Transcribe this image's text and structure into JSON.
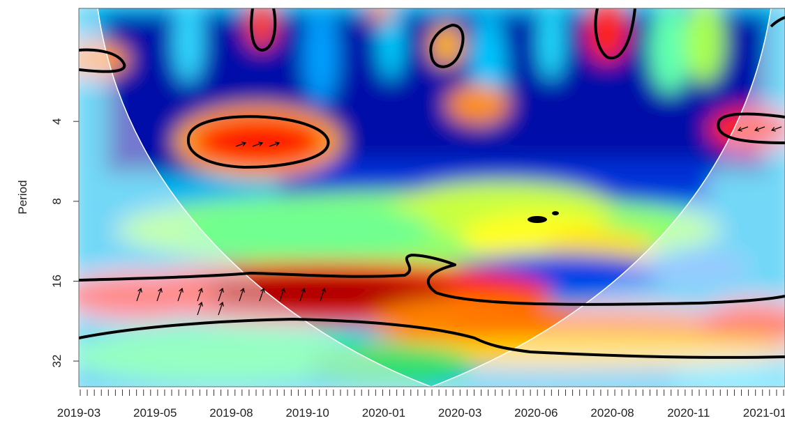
{
  "chart_data": {
    "type": "heatmap",
    "title": "",
    "xlabel": "",
    "ylabel": "Period",
    "y_scale": "log2",
    "ylim": [
      1.5,
      40
    ],
    "y_reversed": true,
    "x_ticks": [
      "2019-03",
      "2019-05",
      "2019-08",
      "2019-10",
      "2020-01",
      "2020-03",
      "2020-06",
      "2020-08",
      "2020-11",
      "2021-01"
    ],
    "y_ticks": [
      4,
      8,
      16,
      32
    ],
    "colormap": [
      "#00008b",
      "#0033ff",
      "#00c8ff",
      "#7fff7f",
      "#ffff00",
      "#ff8000",
      "#ff0000",
      "#8b0000"
    ],
    "grid": false,
    "legend": "none"
  }
}
